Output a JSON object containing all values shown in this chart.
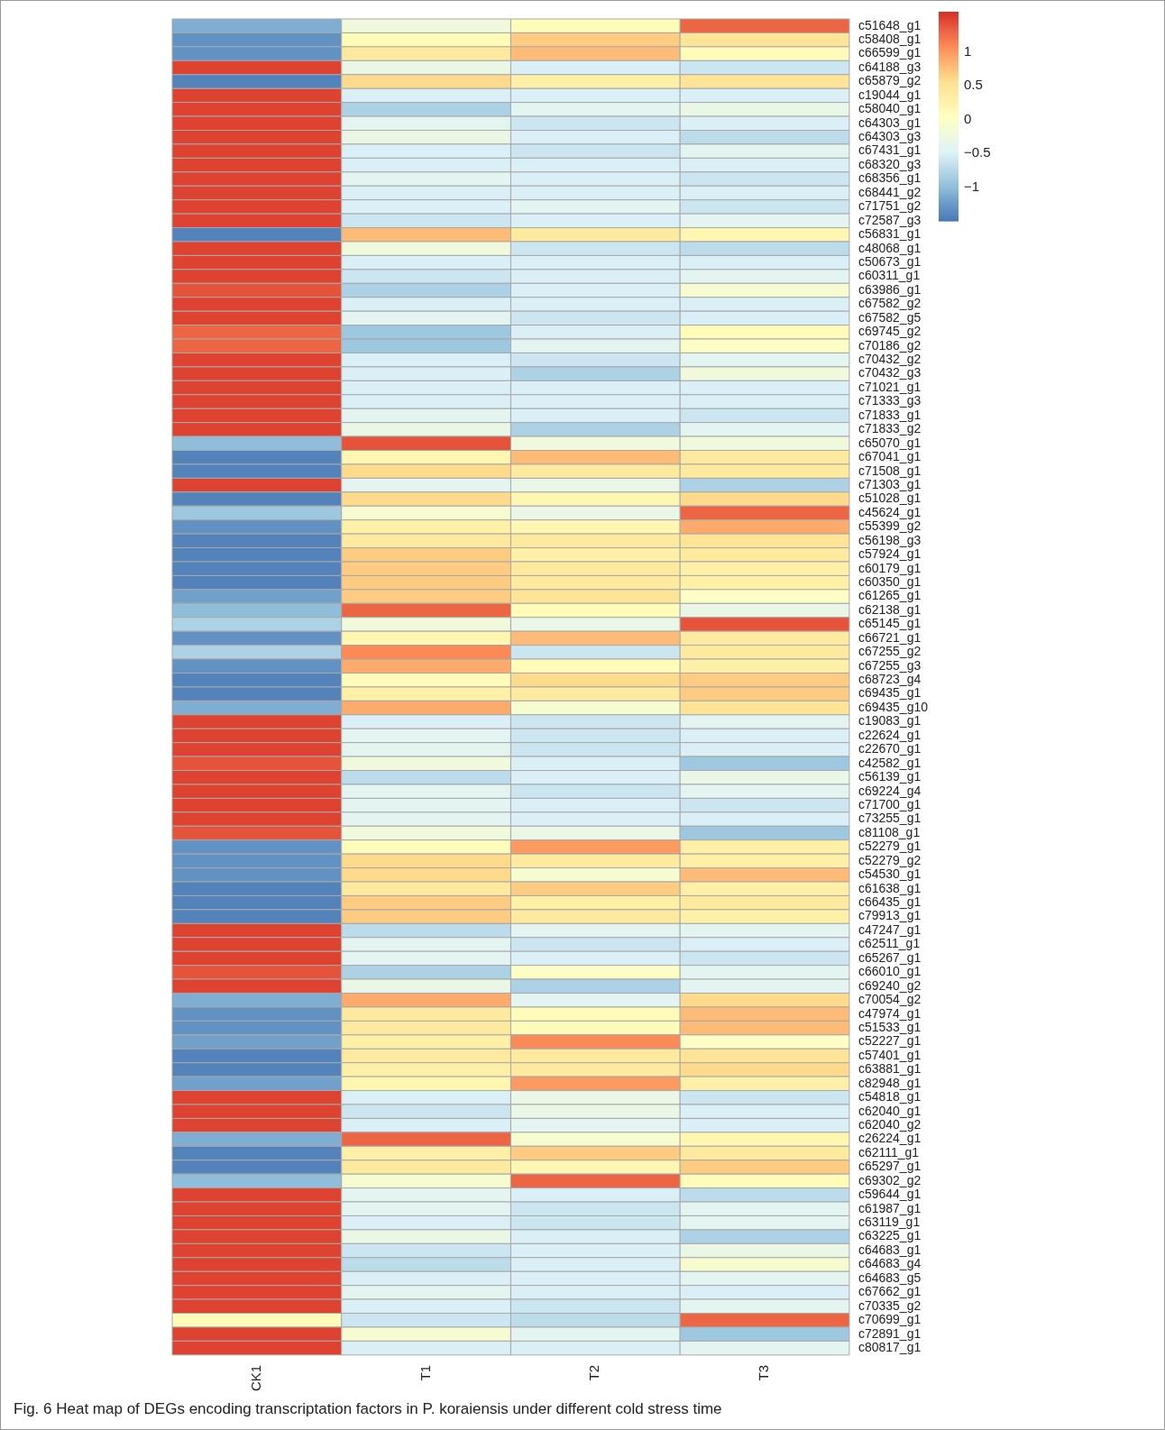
{
  "chart_data": {
    "type": "heatmap",
    "categories": [
      "CK1",
      "T1",
      "T2",
      "T3"
    ],
    "y_categories": [
      "c51648_g1",
      "c58408_g1",
      "c66599_g1",
      "c64188_g3",
      "c65879_g2",
      "c19044_g1",
      "c58040_g1",
      "c64303_g1",
      "c64303_g3",
      "c67431_g1",
      "c68320_g3",
      "c68356_g1",
      "c68441_g2",
      "c71751_g2",
      "c72587_g3",
      "c56831_g1",
      "c48068_g1",
      "c50673_g1",
      "c60311_g1",
      "c63986_g1",
      "c67582_g2",
      "c67582_g5",
      "c69745_g2",
      "c70186_g2",
      "c70432_g2",
      "c70432_g3",
      "c71021_g1",
      "c71333_g3",
      "c71833_g1",
      "c71833_g2",
      "c65070_g1",
      "c67041_g1",
      "c71508_g1",
      "c71303_g1",
      "c51028_g1",
      "c45624_g1",
      "c55399_g2",
      "c56198_g3",
      "c57924_g1",
      "c60179_g1",
      "c60350_g1",
      "c61265_g1",
      "c62138_g1",
      "c65145_g1",
      "c66721_g1",
      "c67255_g2",
      "c67255_g3",
      "c68723_g4",
      "c69435_g1",
      "c69435_g10",
      "c19083_g1",
      "c22624_g1",
      "c22670_g1",
      "c42582_g1",
      "c56139_g1",
      "c69224_g4",
      "c71700_g1",
      "c73255_g1",
      "c81108_g1",
      "c52279_g1",
      "c52279_g2",
      "c54530_g1",
      "c61638_g1",
      "c66435_g1",
      "c79913_g1",
      "c47247_g1",
      "c62511_g1",
      "c65267_g1",
      "c66010_g1",
      "c69240_g2",
      "c70054_g2",
      "c47974_g1",
      "c51533_g1",
      "c52227_g1",
      "c57401_g1",
      "c63881_g1",
      "c82948_g1",
      "c54818_g1",
      "c62040_g1",
      "c62040_g2",
      "c26224_g1",
      "c62111_g1",
      "c65297_g1",
      "c69302_g2",
      "c59644_g1",
      "c61987_g1",
      "c63119_g1",
      "c63225_g1",
      "c64683_g1",
      "c64683_g4",
      "c64683_g5",
      "c67662_g1",
      "c70335_g2",
      "c70699_g1",
      "c72891_g1",
      "c80817_g1"
    ],
    "cells": [
      [
        -1.1,
        -0.2,
        0.1,
        1.3
      ],
      [
        -1.3,
        0.1,
        0.7,
        0.5
      ],
      [
        -1.3,
        0.4,
        0.8,
        0.1
      ],
      [
        1.5,
        -0.3,
        -0.5,
        -0.6
      ],
      [
        -1.4,
        0.6,
        0.3,
        0.5
      ],
      [
        1.5,
        -0.5,
        -0.5,
        -0.5
      ],
      [
        1.5,
        -0.8,
        -0.4,
        -0.3
      ],
      [
        1.5,
        -0.4,
        -0.6,
        -0.5
      ],
      [
        1.5,
        -0.3,
        -0.5,
        -0.7
      ],
      [
        1.5,
        -0.5,
        -0.6,
        -0.4
      ],
      [
        1.5,
        -0.5,
        -0.5,
        -0.5
      ],
      [
        1.5,
        -0.4,
        -0.5,
        -0.6
      ],
      [
        1.5,
        -0.5,
        -0.5,
        -0.5
      ],
      [
        1.5,
        -0.5,
        -0.4,
        -0.6
      ],
      [
        1.5,
        -0.6,
        -0.5,
        -0.4
      ],
      [
        -1.4,
        0.8,
        0.4,
        0.2
      ],
      [
        1.5,
        -0.2,
        -0.6,
        -0.7
      ],
      [
        1.5,
        -0.5,
        -0.5,
        -0.5
      ],
      [
        1.5,
        -0.6,
        -0.5,
        -0.4
      ],
      [
        1.4,
        -0.8,
        -0.5,
        -0.1
      ],
      [
        1.5,
        -0.5,
        -0.5,
        -0.5
      ],
      [
        1.5,
        -0.4,
        -0.6,
        -0.5
      ],
      [
        1.3,
        -0.9,
        -0.5,
        0.1
      ],
      [
        1.3,
        -0.9,
        -0.4,
        0.0
      ],
      [
        1.5,
        -0.5,
        -0.6,
        -0.4
      ],
      [
        1.5,
        -0.5,
        -0.8,
        -0.2
      ],
      [
        1.5,
        -0.5,
        -0.5,
        -0.5
      ],
      [
        1.5,
        -0.5,
        -0.5,
        -0.5
      ],
      [
        1.5,
        -0.4,
        -0.5,
        -0.6
      ],
      [
        1.5,
        -0.3,
        -0.8,
        -0.4
      ],
      [
        -1.0,
        1.4,
        -0.2,
        -0.2
      ],
      [
        -1.4,
        0.2,
        0.8,
        0.4
      ],
      [
        -1.4,
        0.6,
        0.4,
        0.4
      ],
      [
        1.5,
        -0.4,
        -0.3,
        -0.8
      ],
      [
        -1.4,
        0.6,
        0.2,
        0.6
      ],
      [
        -0.9,
        -0.1,
        -0.3,
        1.3
      ],
      [
        -1.3,
        0.3,
        0.2,
        0.9
      ],
      [
        -1.4,
        0.4,
        0.4,
        0.5
      ],
      [
        -1.4,
        0.7,
        0.3,
        0.4
      ],
      [
        -1.4,
        0.7,
        0.4,
        0.3
      ],
      [
        -1.4,
        0.7,
        0.4,
        0.3
      ],
      [
        -1.2,
        0.7,
        0.5,
        0.0
      ],
      [
        -1.0,
        1.3,
        0.1,
        -0.3
      ],
      [
        -0.8,
        -0.2,
        -0.3,
        1.4
      ],
      [
        -1.3,
        0.2,
        0.8,
        0.4
      ],
      [
        -0.8,
        1.1,
        -0.6,
        0.4
      ],
      [
        -1.3,
        0.9,
        0.1,
        0.3
      ],
      [
        -1.4,
        0.1,
        0.6,
        0.7
      ],
      [
        -1.4,
        0.3,
        0.4,
        0.7
      ],
      [
        -1.1,
        0.9,
        -0.1,
        0.5
      ],
      [
        1.5,
        -0.5,
        -0.6,
        -0.4
      ],
      [
        1.5,
        -0.4,
        -0.6,
        -0.5
      ],
      [
        1.5,
        -0.4,
        -0.6,
        -0.5
      ],
      [
        1.4,
        -0.2,
        -0.5,
        -0.9
      ],
      [
        1.5,
        -0.7,
        -0.5,
        -0.3
      ],
      [
        1.5,
        -0.4,
        -0.6,
        -0.4
      ],
      [
        1.5,
        -0.4,
        -0.5,
        -0.6
      ],
      [
        1.5,
        -0.4,
        -0.5,
        -0.5
      ],
      [
        1.4,
        -0.2,
        -0.3,
        -0.9
      ],
      [
        -1.3,
        0.1,
        1.0,
        0.3
      ],
      [
        -1.3,
        0.6,
        0.4,
        0.3
      ],
      [
        -1.3,
        0.6,
        -0.1,
        0.8
      ],
      [
        -1.4,
        0.4,
        0.7,
        0.3
      ],
      [
        -1.4,
        0.7,
        0.3,
        0.4
      ],
      [
        -1.4,
        0.7,
        0.4,
        0.3
      ],
      [
        1.5,
        -0.7,
        -0.4,
        -0.4
      ],
      [
        1.5,
        -0.4,
        -0.6,
        -0.5
      ],
      [
        1.5,
        -0.4,
        -0.5,
        -0.6
      ],
      [
        1.4,
        -0.8,
        0.0,
        -0.4
      ],
      [
        1.5,
        -0.3,
        -0.8,
        -0.4
      ],
      [
        -1.1,
        0.9,
        -0.4,
        0.6
      ],
      [
        -1.3,
        0.4,
        0.1,
        0.8
      ],
      [
        -1.3,
        0.4,
        0.1,
        0.8
      ],
      [
        -1.2,
        0.3,
        1.1,
        0.0
      ],
      [
        -1.4,
        0.4,
        0.4,
        0.5
      ],
      [
        -1.4,
        0.3,
        0.4,
        0.6
      ],
      [
        -1.2,
        0.2,
        1.0,
        0.3
      ],
      [
        1.5,
        -0.5,
        -0.3,
        -0.6
      ],
      [
        1.5,
        -0.6,
        -0.3,
        -0.5
      ],
      [
        1.5,
        -0.5,
        -0.4,
        -0.5
      ],
      [
        -1.1,
        1.3,
        -0.1,
        0.2
      ],
      [
        -1.4,
        0.3,
        0.7,
        0.4
      ],
      [
        -1.4,
        0.4,
        0.2,
        0.7
      ],
      [
        -1.0,
        -0.1,
        1.3,
        0.1
      ],
      [
        1.5,
        -0.4,
        -0.5,
        -0.7
      ],
      [
        1.5,
        -0.4,
        -0.6,
        -0.4
      ],
      [
        1.5,
        -0.5,
        -0.6,
        -0.4
      ],
      [
        1.5,
        -0.3,
        -0.5,
        -0.8
      ],
      [
        1.5,
        -0.6,
        -0.5,
        -0.3
      ],
      [
        1.5,
        -0.7,
        -0.5,
        -0.1
      ],
      [
        1.5,
        -0.5,
        -0.5,
        -0.4
      ],
      [
        1.5,
        -0.4,
        -0.5,
        -0.5
      ],
      [
        1.5,
        -0.5,
        -0.6,
        -0.4
      ],
      [
        0.1,
        -0.6,
        -0.7,
        1.3
      ],
      [
        1.5,
        -0.1,
        -0.4,
        -0.9
      ],
      [
        1.5,
        -0.5,
        -0.5,
        -0.4
      ]
    ],
    "clim": [
      -1.5,
      1.6
    ],
    "cticks": [
      {
        "value": -1,
        "label": "−1"
      },
      {
        "value": -0.5,
        "label": "−0.5"
      },
      0,
      0.5,
      1
    ],
    "annotations": [
      "Fig. 6 Heat map of DEGs encoding transcriptation factors in P. koraiensis under different cold stress time"
    ]
  }
}
